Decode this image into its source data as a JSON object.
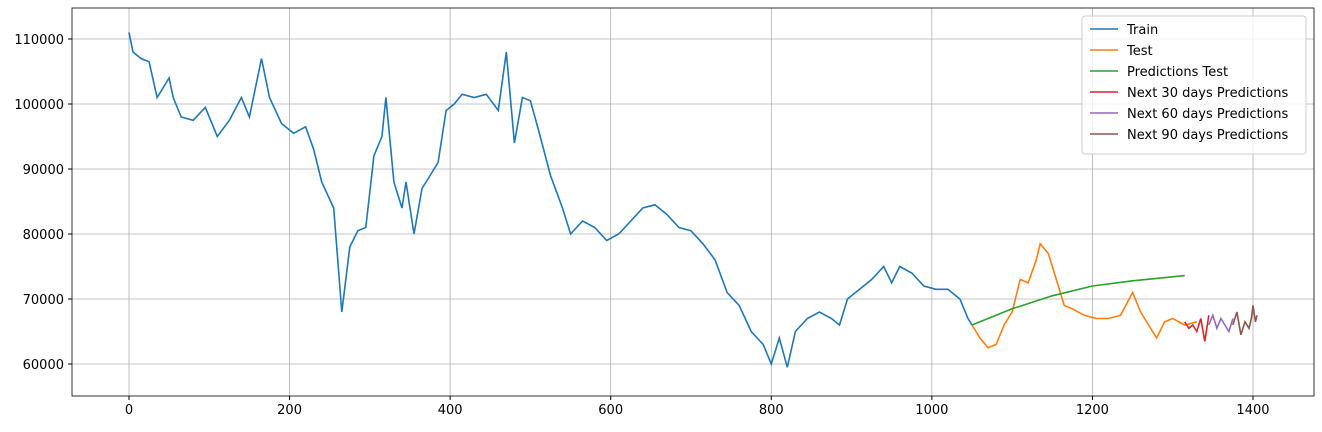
{
  "chart_data": {
    "type": "line",
    "xlim": [
      -71,
      1476
    ],
    "ylim": [
      55077,
      114770
    ],
    "xticks": [
      0,
      200,
      400,
      600,
      800,
      1000,
      1200,
      1400
    ],
    "yticks": [
      60000,
      70000,
      80000,
      90000,
      100000,
      110000
    ],
    "grid": true,
    "legend": "upper right",
    "series": [
      {
        "name": "Train",
        "color": "#1f77b4",
        "x": [
          0,
          5,
          15,
          25,
          35,
          40,
          50,
          55,
          65,
          80,
          95,
          110,
          125,
          140,
          150,
          165,
          175,
          190,
          205,
          220,
          230,
          240,
          255,
          265,
          275,
          285,
          295,
          305,
          315,
          320,
          330,
          340,
          345,
          355,
          365,
          375,
          385,
          395,
          405,
          415,
          430,
          445,
          460,
          470,
          480,
          490,
          500,
          510,
          525,
          540,
          550,
          565,
          580,
          595,
          610,
          625,
          640,
          655,
          670,
          685,
          700,
          715,
          730,
          745,
          760,
          775,
          790,
          800,
          810,
          820,
          830,
          845,
          860,
          875,
          885,
          895,
          910,
          925,
          940,
          950,
          960,
          975,
          990,
          1005,
          1020,
          1035,
          1045,
          1050
        ],
        "values": [
          111000,
          108000,
          107000,
          106500,
          101000,
          102000,
          104000,
          101000,
          98000,
          97500,
          99500,
          95000,
          97500,
          101000,
          98000,
          107000,
          101000,
          97000,
          95500,
          96500,
          93000,
          88000,
          84000,
          68000,
          78000,
          80500,
          81000,
          92000,
          95000,
          101000,
          88000,
          84000,
          88000,
          80000,
          87000,
          89000,
          91000,
          99000,
          100000,
          101500,
          101000,
          101500,
          99000,
          108000,
          94000,
          101000,
          100500,
          96000,
          89000,
          84000,
          80000,
          82000,
          81000,
          79000,
          80000,
          82000,
          84000,
          84500,
          83000,
          81000,
          80500,
          78500,
          76000,
          71000,
          69000,
          65000,
          63000,
          60000,
          64000,
          59500,
          65000,
          67000,
          68000,
          67000,
          66000,
          70000,
          71500,
          73000,
          75000,
          72500,
          75000,
          74000,
          72000,
          71500,
          71500,
          70000,
          67000,
          66000
        ]
      },
      {
        "name": "Test",
        "color": "#ff7f0e",
        "x": [
          1050,
          1060,
          1070,
          1080,
          1090,
          1100,
          1110,
          1120,
          1130,
          1135,
          1145,
          1155,
          1165,
          1175,
          1190,
          1205,
          1220,
          1235,
          1250,
          1260,
          1270,
          1280,
          1290,
          1300,
          1315,
          1330
        ],
        "values": [
          66000,
          64000,
          62500,
          63000,
          66000,
          68000,
          73000,
          72500,
          76000,
          78500,
          77000,
          73000,
          69000,
          68500,
          67500,
          67000,
          67000,
          67500,
          71000,
          68000,
          66000,
          64000,
          66500,
          67000,
          66000,
          66500
        ]
      },
      {
        "name": "Predictions Test",
        "color": "#2ca02c",
        "x": [
          1050,
          1100,
          1150,
          1200,
          1250,
          1315
        ],
        "values": [
          66000,
          68500,
          70500,
          72000,
          72800,
          73600
        ]
      },
      {
        "name": "Next 30 days Predictions",
        "color": "#d62728",
        "x": [
          1315,
          1320,
          1325,
          1330,
          1335,
          1340,
          1345
        ],
        "values": [
          66500,
          65500,
          66000,
          65000,
          67000,
          63500,
          67500
        ]
      },
      {
        "name": "Next 60 days Predictions",
        "color": "#9467bd",
        "x": [
          1345,
          1350,
          1355,
          1360,
          1365,
          1370,
          1375
        ],
        "values": [
          66000,
          67500,
          65500,
          67000,
          66000,
          65000,
          67000
        ]
      },
      {
        "name": "Next 90 days Predictions",
        "color": "#8c564b",
        "x": [
          1375,
          1380,
          1385,
          1390,
          1395,
          1398,
          1400,
          1403,
          1405
        ],
        "values": [
          66000,
          68000,
          64500,
          66500,
          65500,
          67000,
          69000,
          66500,
          67500
        ]
      }
    ]
  }
}
